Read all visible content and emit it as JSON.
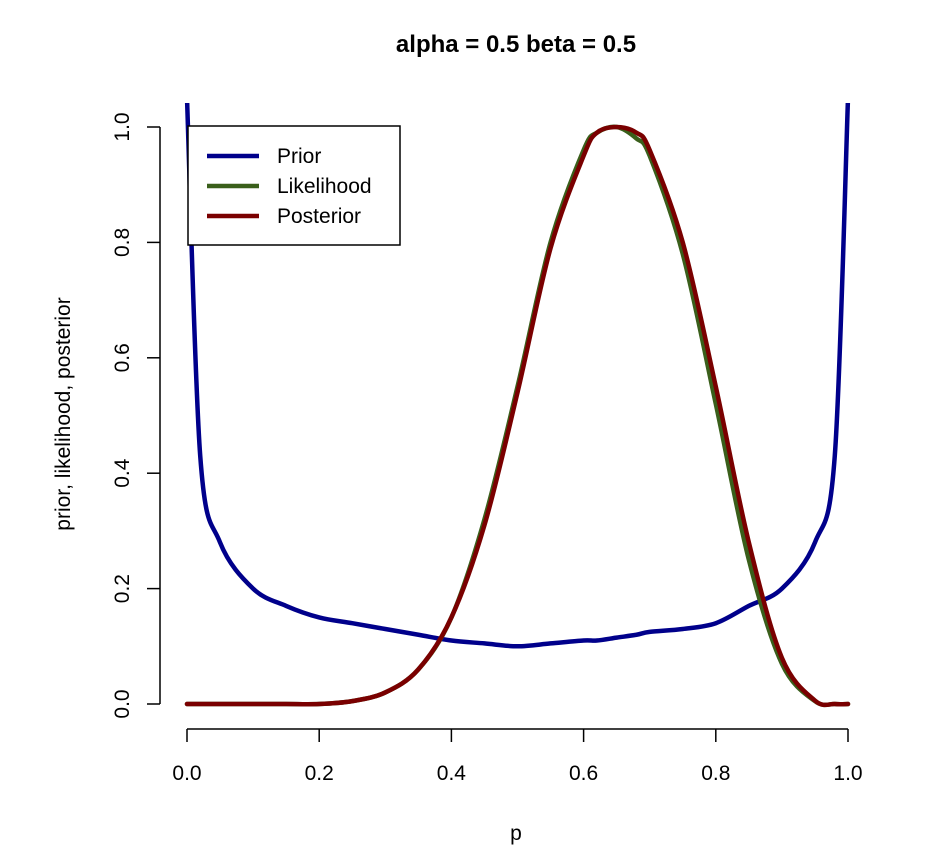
{
  "chart_data": {
    "type": "line",
    "title": "alpha =  0.5 beta =  0.5",
    "xlabel": "p",
    "ylabel": "prior, likelihood, posterior",
    "xlim": [
      0,
      1
    ],
    "ylim": [
      0,
      1
    ],
    "x_ticks": [
      "0.0",
      "0.2",
      "0.4",
      "0.6",
      "0.8",
      "1.0"
    ],
    "y_ticks": [
      "0.0",
      "0.2",
      "0.4",
      "0.6",
      "0.8",
      "1.0"
    ],
    "x": [
      0.0,
      0.02,
      0.05,
      0.1,
      0.15,
      0.2,
      0.25,
      0.3,
      0.35,
      0.4,
      0.45,
      0.5,
      0.55,
      0.6,
      0.62,
      0.65,
      0.68,
      0.7,
      0.75,
      0.8,
      0.85,
      0.9,
      0.95,
      0.98,
      1.0
    ],
    "legend": {
      "position": "top-left",
      "entries": [
        "Prior",
        "Likelihood",
        "Posterior"
      ]
    },
    "grid": false,
    "series": [
      {
        "name": "Prior",
        "color": "#00008B",
        "values": [
          1.05,
          0.43,
          0.28,
          0.2,
          0.17,
          0.15,
          0.14,
          0.13,
          0.12,
          0.11,
          0.105,
          0.1,
          0.105,
          0.11,
          0.11,
          0.115,
          0.12,
          0.125,
          0.13,
          0.14,
          0.17,
          0.2,
          0.28,
          0.43,
          1.05
        ]
      },
      {
        "name": "Likelihood",
        "color": "#3A5F1B",
        "values": [
          0.0,
          0.0,
          0.0,
          0.0,
          0.0,
          0.0,
          0.005,
          0.02,
          0.06,
          0.15,
          0.32,
          0.55,
          0.8,
          0.96,
          0.99,
          1.0,
          0.98,
          0.95,
          0.78,
          0.52,
          0.25,
          0.07,
          0.005,
          0.0,
          0.0
        ]
      },
      {
        "name": "Posterior",
        "color": "#7A0000",
        "values": [
          0.0,
          0.0,
          0.0,
          0.0,
          0.0,
          0.0,
          0.005,
          0.02,
          0.06,
          0.15,
          0.31,
          0.54,
          0.79,
          0.95,
          0.99,
          1.0,
          0.99,
          0.96,
          0.8,
          0.55,
          0.28,
          0.08,
          0.006,
          0.0,
          0.0
        ]
      }
    ]
  }
}
